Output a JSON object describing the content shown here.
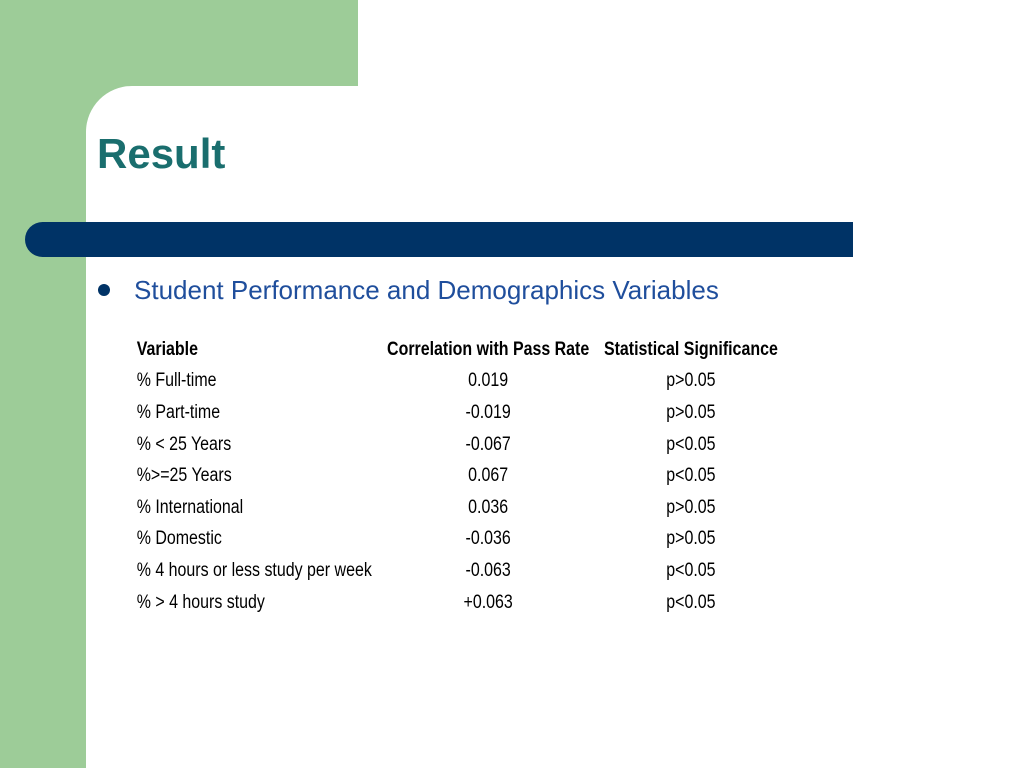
{
  "slide": {
    "title": "Result",
    "bullet": "Student Performance and Demographics Variables"
  },
  "colors": {
    "green_block": "#9dcc98",
    "title_bar": "#003366",
    "title_text": "#1a6e6e",
    "bullet_text": "#1f4e9c"
  },
  "table": {
    "headers": [
      "Variable",
      "Correlation with Pass Rate",
      "Statistical Significance"
    ],
    "rows": [
      [
        "% Full-time",
        "0.019",
        "p>0.05"
      ],
      [
        "% Part-time",
        "-0.019",
        "p>0.05"
      ],
      [
        "% < 25 Years",
        "-0.067",
        "p<0.05"
      ],
      [
        "%>=25 Years",
        "0.067",
        "p<0.05"
      ],
      [
        "% International",
        "0.036",
        "p>0.05"
      ],
      [
        "% Domestic",
        "-0.036",
        "p>0.05"
      ],
      [
        "% 4 hours or less study per week",
        "-0.063",
        "p<0.05"
      ],
      [
        "% > 4 hours study",
        "+0.063",
        "p<0.05"
      ]
    ]
  }
}
